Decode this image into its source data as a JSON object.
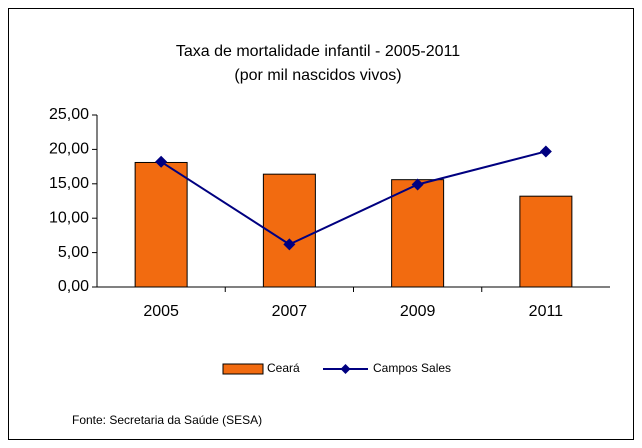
{
  "chart_data": {
    "type": "bar",
    "title": "Taxa de mortalidade infantil - 2005-2011",
    "subtitle": "(por mil nascidos vivos)",
    "source": "Fonte: Secretaria da Saúde (SESA)",
    "categories": [
      "2005",
      "2007",
      "2009",
      "2011"
    ],
    "series": [
      {
        "name": "Ceará",
        "type": "bar",
        "color": "#f26b10",
        "values": [
          18.1,
          16.4,
          15.6,
          13.2
        ]
      },
      {
        "name": "Campos Sales",
        "type": "line",
        "color": "#000080",
        "values": [
          18.2,
          6.2,
          14.9,
          19.7
        ]
      }
    ],
    "ylim": [
      0,
      25
    ],
    "yticks": [
      {
        "value": 0,
        "label": "0,00"
      },
      {
        "value": 5,
        "label": "5,00"
      },
      {
        "value": 10,
        "label": "10,00"
      },
      {
        "value": 15,
        "label": "15,00"
      },
      {
        "value": 20,
        "label": "20,00"
      },
      {
        "value": 25,
        "label": "25,00"
      }
    ],
    "legend": "bottom"
  }
}
